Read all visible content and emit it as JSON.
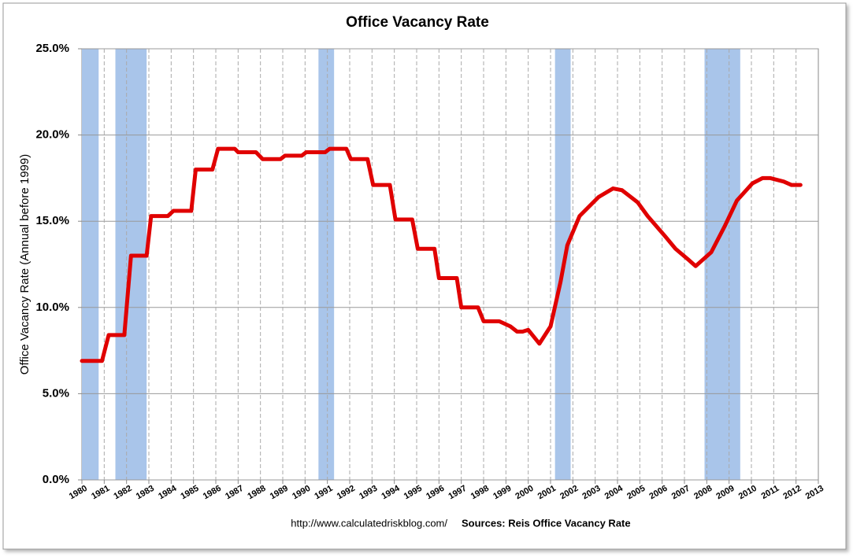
{
  "chart_data": {
    "type": "line",
    "title": "Office Vacancy Rate",
    "y_label": "Office Vacancy Rate (Annual before 1999)",
    "footer_url": "http://www.calculatedriskblog.com/",
    "footer_source": "Sources: Reis Office Vacancy Rate",
    "color": "#e00000",
    "band_color": "#a9c5ea",
    "grid": true,
    "x": [
      1980.0,
      1980.9,
      1981.2,
      1981.9,
      1982.2,
      1982.9,
      1983.1,
      1983.85,
      1984.1,
      1984.9,
      1985.1,
      1985.85,
      1986.1,
      1986.85,
      1987.0,
      1987.8,
      1988.1,
      1988.9,
      1989.1,
      1989.85,
      1990.05,
      1990.9,
      1991.1,
      1991.85,
      1992.05,
      1992.8,
      1993.05,
      1993.8,
      1994.05,
      1994.8,
      1995.05,
      1995.8,
      1996.0,
      1996.8,
      1997.0,
      1997.75,
      1998.0,
      1998.7,
      1999.2,
      1999.5,
      1999.75,
      2000.0,
      2000.5,
      2001.0,
      2001.45,
      2001.75,
      2002.3,
      2003.15,
      2003.8,
      2004.2,
      2004.9,
      2005.35,
      2006.15,
      2006.6,
      2007.15,
      2007.5,
      2008.2,
      2008.8,
      2009.35,
      2010.05,
      2010.5,
      2010.85,
      2011.45,
      2011.8,
      2012.2
    ],
    "values": [
      6.9,
      6.9,
      8.4,
      8.4,
      13.0,
      13.0,
      15.3,
      15.3,
      15.6,
      15.6,
      18.0,
      18.0,
      19.2,
      19.2,
      19.0,
      19.0,
      18.6,
      18.6,
      18.8,
      18.8,
      19.0,
      19.0,
      19.2,
      19.2,
      18.6,
      18.6,
      17.1,
      17.1,
      15.1,
      15.1,
      13.4,
      13.4,
      11.7,
      11.7,
      10.0,
      10.0,
      9.2,
      9.2,
      8.9,
      8.6,
      8.6,
      8.7,
      7.9,
      8.9,
      11.5,
      13.6,
      15.3,
      16.4,
      16.9,
      16.8,
      16.1,
      15.3,
      14.1,
      13.4,
      12.8,
      12.4,
      13.2,
      14.7,
      16.2,
      17.2,
      17.5,
      17.5,
      17.3,
      17.1,
      17.1
    ],
    "recessions": [
      [
        1980.0,
        1980.75
      ],
      [
        1981.5,
        1982.9
      ],
      [
        1990.6,
        1991.3
      ],
      [
        2001.2,
        2001.9
      ],
      [
        2007.9,
        2009.5
      ]
    ],
    "xlim": [
      1980,
      2013
    ],
    "xticks": [
      1980,
      1981,
      1982,
      1983,
      1984,
      1985,
      1986,
      1987,
      1988,
      1989,
      1990,
      1991,
      1992,
      1993,
      1994,
      1995,
      1996,
      1997,
      1998,
      1999,
      2000,
      2001,
      2002,
      2003,
      2004,
      2005,
      2006,
      2007,
      2008,
      2009,
      2010,
      2011,
      2012,
      2013
    ],
    "ylim": [
      0,
      25
    ],
    "yticks": [
      {
        "value": 0,
        "label": "0.0%"
      },
      {
        "value": 5,
        "label": "5.0%"
      },
      {
        "value": 10,
        "label": "10.0%"
      },
      {
        "value": 15,
        "label": "15.0%"
      },
      {
        "value": 20,
        "label": "20.0%"
      },
      {
        "value": 25,
        "label": "25.0%"
      }
    ]
  }
}
